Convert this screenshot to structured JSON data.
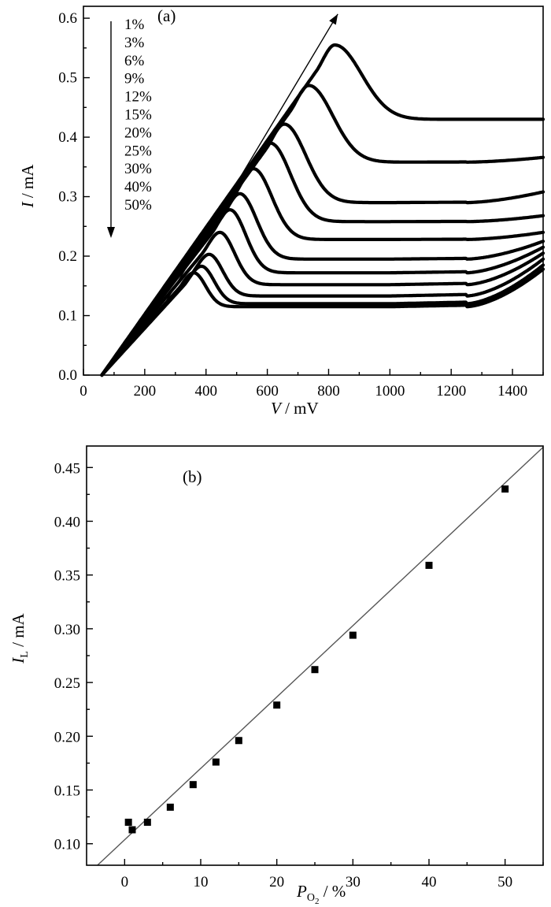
{
  "chart_data": [
    {
      "type": "line",
      "panel_label": "(a)",
      "xlabel_var": "V",
      "xlabel_unit": " / mV",
      "ylabel_var": "I",
      "ylabel_unit": " / mA",
      "xlim": [
        0,
        1500
      ],
      "ylim": [
        0,
        0.62
      ],
      "x_ticks": [
        "0",
        "200",
        "400",
        "600",
        "800",
        "1000",
        "1200",
        "1400"
      ],
      "y_ticks": [
        "0.0",
        "0.1",
        "0.2",
        "0.3",
        "0.4",
        "0.5",
        "0.6"
      ],
      "grid": false,
      "legend_position": "top-left",
      "legend_arrow": "down",
      "trend_arrow": "increasing O2 fraction",
      "series": [
        {
          "name": "1%",
          "peak_v": 360,
          "peak_i": 0.172,
          "plateau": 0.115,
          "end_i": 0.178
        },
        {
          "name": "3%",
          "peak_v": 385,
          "peak_i": 0.183,
          "plateau": 0.12,
          "end_i": 0.185
        },
        {
          "name": "6%",
          "peak_v": 410,
          "peak_i": 0.203,
          "plateau": 0.133,
          "end_i": 0.195
        },
        {
          "name": "9%",
          "peak_v": 445,
          "peak_i": 0.24,
          "plateau": 0.152,
          "end_i": 0.205
        },
        {
          "name": "12%",
          "peak_v": 478,
          "peak_i": 0.278,
          "plateau": 0.172,
          "end_i": 0.215
        },
        {
          "name": "15%",
          "peak_v": 510,
          "peak_i": 0.305,
          "plateau": 0.195,
          "end_i": 0.225
        },
        {
          "name": "20%",
          "peak_v": 555,
          "peak_i": 0.347,
          "plateau": 0.228,
          "end_i": 0.24
        },
        {
          "name": "25%",
          "peak_v": 610,
          "peak_i": 0.39,
          "plateau": 0.258,
          "end_i": 0.268
        },
        {
          "name": "30%",
          "peak_v": 655,
          "peak_i": 0.422,
          "plateau": 0.29,
          "end_i": 0.308
        },
        {
          "name": "40%",
          "peak_v": 735,
          "peak_i": 0.487,
          "plateau": 0.358,
          "end_i": 0.366
        },
        {
          "name": "50%",
          "peak_v": 820,
          "peak_i": 0.555,
          "plateau": 0.43,
          "end_i": 0.43
        }
      ]
    },
    {
      "type": "scatter",
      "panel_label": "(b)",
      "xlabel_var": "P",
      "xlabel_sub": "O",
      "xlabel_subsub": "2",
      "xlabel_unit": " / %",
      "ylabel_var": "I",
      "ylabel_sub": "L",
      "ylabel_unit": " / mA",
      "xlim": [
        -5,
        55
      ],
      "ylim": [
        0.08,
        0.47
      ],
      "x_ticks": [
        "0",
        "10",
        "20",
        "30",
        "40",
        "50"
      ],
      "y_ticks": [
        "0.10",
        "0.15",
        "0.20",
        "0.25",
        "0.30",
        "0.35",
        "0.40",
        "0.45"
      ],
      "grid": false,
      "points": [
        {
          "x": 0.5,
          "y": 0.12
        },
        {
          "x": 1,
          "y": 0.113
        },
        {
          "x": 3,
          "y": 0.12
        },
        {
          "x": 6,
          "y": 0.134
        },
        {
          "x": 9,
          "y": 0.155
        },
        {
          "x": 12,
          "y": 0.176
        },
        {
          "x": 15,
          "y": 0.196
        },
        {
          "x": 20,
          "y": 0.229
        },
        {
          "x": 25,
          "y": 0.262
        },
        {
          "x": 30,
          "y": 0.294
        },
        {
          "x": 40,
          "y": 0.359
        },
        {
          "x": 50,
          "y": 0.43
        }
      ],
      "fit_line": {
        "slope": 0.00664,
        "intercept": 0.1037
      }
    }
  ]
}
